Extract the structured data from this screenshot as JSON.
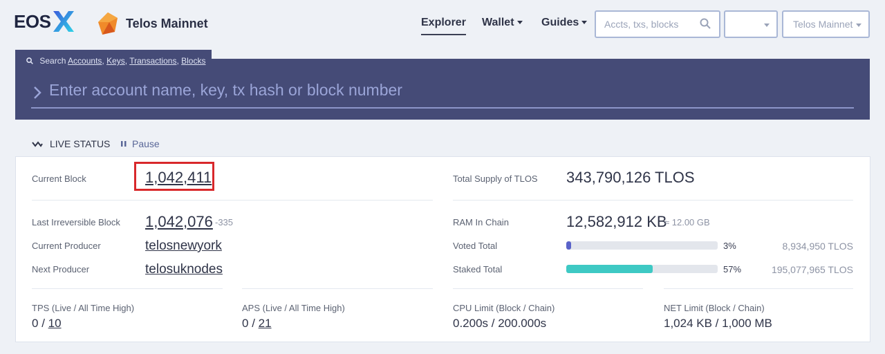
{
  "header": {
    "logo_text": "EOS",
    "chain_name": "Telos Mainnet",
    "nav": [
      {
        "label": "Explorer"
      },
      {
        "label": "Wallet"
      },
      {
        "label": "Guides"
      }
    ],
    "search_placeholder": "Accts, txs, blocks",
    "network_select": "Telos Mainnet",
    "icons": {
      "search": "search-icon",
      "caret": "chevron-down-icon"
    }
  },
  "search_panel": {
    "tab_prefix": "Search",
    "tab_links": [
      "Accounts",
      "Keys",
      "Transactions",
      "Blocks"
    ],
    "placeholder": "Enter account name, key, tx hash or block number"
  },
  "live_status": {
    "title": "LIVE STATUS",
    "pause_label": "Pause"
  },
  "stats": {
    "current_block_label": "Current Block",
    "current_block": "1,042,411",
    "lib_label": "Last Irreversible Block",
    "lib_value": "1,042,076",
    "lib_diff": "-335",
    "current_producer_label": "Current Producer",
    "current_producer": "telosnewyork",
    "next_producer_label": "Next Producer",
    "next_producer": "telosuknodes",
    "total_supply_label": "Total Supply of TLOS",
    "total_supply": "343,790,126 TLOS",
    "ram_label": "RAM In Chain",
    "ram_value": "12,582,912 KB",
    "ram_approx": "≈ 12.00 GB",
    "voted_label": "Voted Total",
    "voted_pct": "3%",
    "voted_fraction": 0.03,
    "voted_amount": "8,934,950 TLOS",
    "staked_label": "Staked Total",
    "staked_pct": "57%",
    "staked_fraction": 0.57,
    "staked_amount": "195,077,965 TLOS",
    "tps_label": "TPS (Live / All Time High)",
    "tps_live": "0",
    "tps_high": "10",
    "aps_label": "APS (Live / All Time High)",
    "aps_live": "0",
    "aps_high": "21",
    "cpu_label": "CPU Limit (Block / Chain)",
    "cpu_value": "0.200s / 200.000s",
    "net_label": "NET Limit (Block / Chain)",
    "net_value": "1,024 KB / 1,000 MB",
    "colors": {
      "voted": "#5a63c9",
      "staked": "#3ec9c4",
      "highlight": "#d8282b"
    }
  }
}
